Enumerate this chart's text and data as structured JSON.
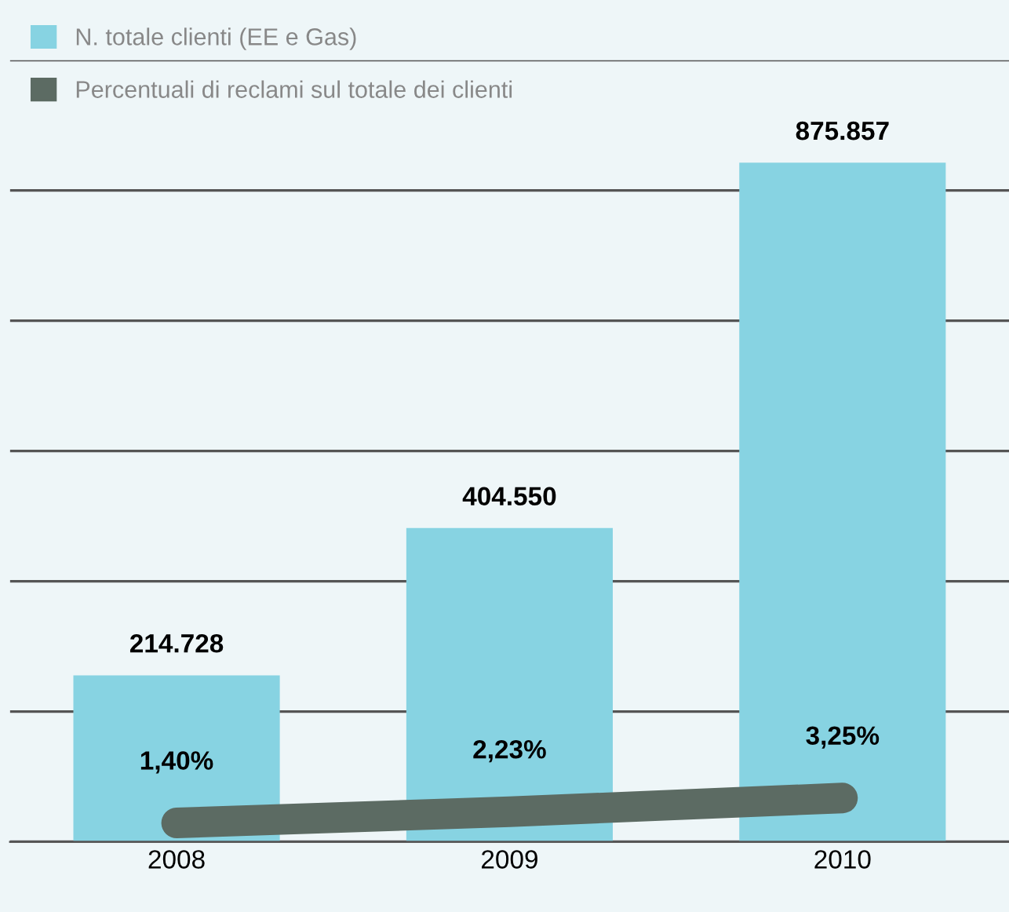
{
  "chart_data": {
    "type": "bar",
    "categories": [
      "2008",
      "2009",
      "2010"
    ],
    "series": [
      {
        "name": "N. totale clienti (EE e Gas)",
        "color": "#87d3e2",
        "values": [
          214728,
          404550,
          875857
        ],
        "value_labels": [
          "214.728",
          "404.550",
          "875.857"
        ]
      },
      {
        "name": "Percentuali di reclami sul totale dei clienti",
        "type": "line",
        "axis": "y2",
        "color": "#5c6b63",
        "values": [
          1.4,
          2.23,
          3.25
        ],
        "value_labels": [
          "1,40%",
          "2,23%",
          "3,25%"
        ]
      }
    ],
    "ylim": [
      0,
      1008000
    ],
    "yticks": [
      {
        "value": 0,
        "label": null
      },
      {
        "value": 168000,
        "label": null
      },
      {
        "value": 336000,
        "label": null
      },
      {
        "value": 504000,
        "label": null
      },
      {
        "value": 672000,
        "label": null
      },
      {
        "value": 840000,
        "label": null
      },
      {
        "value": 1008000,
        "label": null
      }
    ],
    "y2lim": [
      0,
      58
    ],
    "tick_labels": "x",
    "grid": "y",
    "legend": "top left",
    "line_style": "solid"
  }
}
